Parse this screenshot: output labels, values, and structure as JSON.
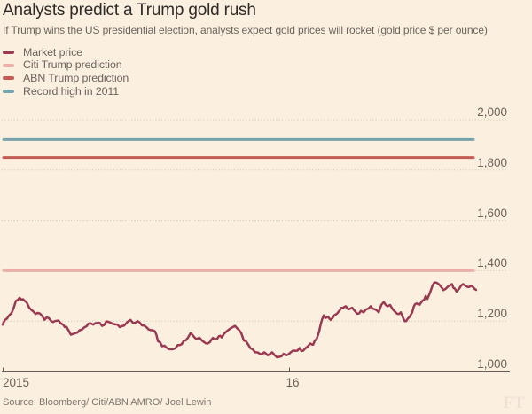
{
  "title": "Analysts predict a Trump gold rush",
  "subtitle": "If Trump wins the US presidential election, analysts expect gold prices will rocket (gold price $ per ounce)",
  "source": "Source: Bloomberg/ Citi/ABN AMRO/ Joel Lewin",
  "brand": "FT",
  "colors": {
    "background": "#FBF0E0",
    "market": "#9A3A52",
    "citi": "#EAAFA8",
    "abn": "#C25B53",
    "record": "#76A3AA",
    "grid": "#CFC0AC",
    "axis": "#66605B",
    "text_dark": "#2e2b28",
    "text_gray": "#6a645d"
  },
  "legend": [
    {
      "label": "Market price",
      "color": "#9A3A52"
    },
    {
      "label": "Citi Trump prediction",
      "color": "#EAAFA8"
    },
    {
      "label": "ABN Trump prediction",
      "color": "#C25B53"
    },
    {
      "label": "Record high in 2011",
      "color": "#76A3AA"
    }
  ],
  "chart_data": {
    "type": "line",
    "title": "Analysts predict a Trump gold rush",
    "ylabel": "gold price $ per ounce",
    "ylim": [
      1000,
      2000
    ],
    "yticks": [
      {
        "value": 2000,
        "label": "2,000"
      },
      {
        "value": 1800,
        "label": "1,800"
      },
      {
        "value": 1600,
        "label": "1,600"
      },
      {
        "value": 1400,
        "label": "1,400"
      },
      {
        "value": 1200,
        "label": "1,200"
      },
      {
        "value": 1000,
        "label": "1,000"
      }
    ],
    "xticks": [
      {
        "year": 2015.0,
        "label": "2015"
      },
      {
        "year": 2016.0,
        "label": "16"
      }
    ],
    "grid": "dotted-horizontal",
    "legend_position": "top-left",
    "reference_lines": [
      {
        "name": "Citi Trump prediction",
        "value": 1400,
        "color": "#EAAFA8"
      },
      {
        "name": "ABN Trump prediction",
        "value": 1850,
        "color": "#C25B53"
      },
      {
        "name": "Record high in 2011",
        "value": 1921,
        "color": "#76A3AA"
      }
    ],
    "series": [
      {
        "name": "Market price",
        "color": "#9A3A52",
        "x_unit": "decimal_year",
        "points": [
          [
            2015.0,
            1186
          ],
          [
            2015.015,
            1210
          ],
          [
            2015.031,
            1232
          ],
          [
            2015.046,
            1280
          ],
          [
            2015.059,
            1293
          ],
          [
            2015.071,
            1287
          ],
          [
            2015.084,
            1274
          ],
          [
            2015.093,
            1253
          ],
          [
            2015.105,
            1240
          ],
          [
            2015.115,
            1228
          ],
          [
            2015.13,
            1230
          ],
          [
            2015.146,
            1205
          ],
          [
            2015.161,
            1212
          ],
          [
            2015.176,
            1196
          ],
          [
            2015.195,
            1202
          ],
          [
            2015.211,
            1186
          ],
          [
            2015.223,
            1177
          ],
          [
            2015.238,
            1146
          ],
          [
            2015.254,
            1152
          ],
          [
            2015.269,
            1164
          ],
          [
            2015.285,
            1175
          ],
          [
            2015.3,
            1190
          ],
          [
            2015.316,
            1186
          ],
          [
            2015.331,
            1193
          ],
          [
            2015.347,
            1181
          ],
          [
            2015.362,
            1199
          ],
          [
            2015.378,
            1193
          ],
          [
            2015.393,
            1187
          ],
          [
            2015.409,
            1176
          ],
          [
            2015.424,
            1182
          ],
          [
            2015.437,
            1198
          ],
          [
            2015.446,
            1205
          ],
          [
            2015.455,
            1193
          ],
          [
            2015.471,
            1200
          ],
          [
            2015.486,
            1183
          ],
          [
            2015.502,
            1176
          ],
          [
            2015.517,
            1164
          ],
          [
            2015.532,
            1159
          ],
          [
            2015.542,
            1120
          ],
          [
            2015.557,
            1100
          ],
          [
            2015.573,
            1094
          ],
          [
            2015.588,
            1088
          ],
          [
            2015.604,
            1093
          ],
          [
            2015.619,
            1105
          ],
          [
            2015.632,
            1121
          ],
          [
            2015.647,
            1134
          ],
          [
            2015.656,
            1152
          ],
          [
            2015.666,
            1141
          ],
          [
            2015.678,
            1129
          ],
          [
            2015.687,
            1134
          ],
          [
            2015.697,
            1122
          ],
          [
            2015.709,
            1112
          ],
          [
            2015.724,
            1117
          ],
          [
            2015.734,
            1133
          ],
          [
            2015.743,
            1128
          ],
          [
            2015.755,
            1140
          ],
          [
            2015.765,
            1135
          ],
          [
            2015.774,
            1151
          ],
          [
            2015.786,
            1163
          ],
          [
            2015.802,
            1175
          ],
          [
            2015.811,
            1181
          ],
          [
            2015.82,
            1170
          ],
          [
            2015.833,
            1152
          ],
          [
            2015.842,
            1123
          ],
          [
            2015.858,
            1106
          ],
          [
            2015.873,
            1088
          ],
          [
            2015.882,
            1076
          ],
          [
            2015.898,
            1070
          ],
          [
            2015.913,
            1076
          ],
          [
            2015.926,
            1064
          ],
          [
            2015.941,
            1076
          ],
          [
            2015.95,
            1064
          ],
          [
            2015.966,
            1058
          ],
          [
            2015.981,
            1070
          ],
          [
            2015.991,
            1064
          ],
          [
            2016.006,
            1076
          ],
          [
            2016.022,
            1082
          ],
          [
            2016.037,
            1093
          ],
          [
            2016.049,
            1082
          ],
          [
            2016.065,
            1099
          ],
          [
            2016.074,
            1111
          ],
          [
            2016.084,
            1106
          ],
          [
            2016.096,
            1128
          ],
          [
            2016.105,
            1158
          ],
          [
            2016.115,
            1205
          ],
          [
            2016.121,
            1223
          ],
          [
            2016.127,
            1212
          ],
          [
            2016.136,
            1217
          ],
          [
            2016.145,
            1205
          ],
          [
            2016.158,
            1223
          ],
          [
            2016.167,
            1229
          ],
          [
            2016.176,
            1241
          ],
          [
            2016.189,
            1253
          ],
          [
            2016.198,
            1259
          ],
          [
            2016.207,
            1247
          ],
          [
            2016.22,
            1253
          ],
          [
            2016.229,
            1241
          ],
          [
            2016.238,
            1229
          ],
          [
            2016.251,
            1241
          ],
          [
            2016.26,
            1235
          ],
          [
            2016.269,
            1247
          ],
          [
            2016.285,
            1259
          ],
          [
            2016.291,
            1250
          ],
          [
            2016.3,
            1247
          ],
          [
            2016.313,
            1235
          ],
          [
            2016.322,
            1264
          ],
          [
            2016.331,
            1276
          ],
          [
            2016.344,
            1259
          ],
          [
            2016.353,
            1264
          ],
          [
            2016.362,
            1247
          ],
          [
            2016.378,
            1229
          ],
          [
            2016.39,
            1235
          ],
          [
            2016.399,
            1211
          ],
          [
            2016.409,
            1200
          ],
          [
            2016.421,
            1217
          ],
          [
            2016.43,
            1235
          ],
          [
            2016.436,
            1259
          ],
          [
            2016.446,
            1270
          ],
          [
            2016.455,
            1264
          ],
          [
            2016.467,
            1282
          ],
          [
            2016.477,
            1300
          ],
          [
            2016.483,
            1288
          ],
          [
            2016.492,
            1312
          ],
          [
            2016.501,
            1341
          ],
          [
            2016.514,
            1353
          ],
          [
            2016.523,
            1347
          ],
          [
            2016.532,
            1335
          ],
          [
            2016.539,
            1323
          ],
          [
            2016.548,
            1329
          ],
          [
            2016.56,
            1341
          ],
          [
            2016.569,
            1347
          ],
          [
            2016.579,
            1329
          ],
          [
            2016.585,
            1317
          ],
          [
            2016.594,
            1329
          ],
          [
            2016.607,
            1347
          ],
          [
            2016.616,
            1341
          ],
          [
            2016.625,
            1335
          ],
          [
            2016.638,
            1341
          ],
          [
            2016.647,
            1329
          ],
          [
            2016.653,
            1324
          ]
        ]
      }
    ]
  }
}
